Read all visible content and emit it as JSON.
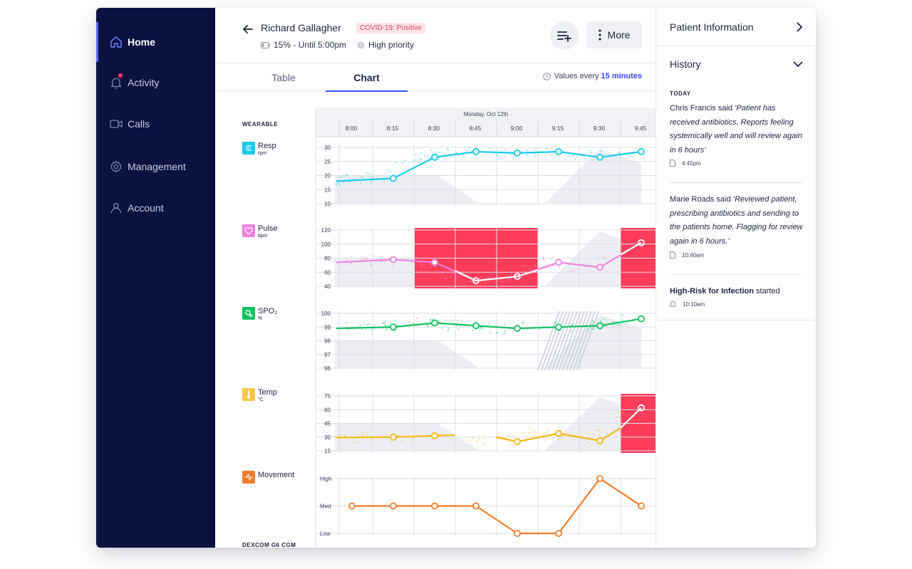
{
  "sidebar": {
    "items": [
      {
        "label": "Home",
        "icon": "home-icon",
        "active": true
      },
      {
        "label": "Activity",
        "icon": "bell-icon",
        "active": false
      },
      {
        "label": "Calls",
        "icon": "video-icon",
        "active": false
      },
      {
        "label": "Management",
        "icon": "gear-icon",
        "active": false
      },
      {
        "label": "Account",
        "icon": "user-icon",
        "active": false
      }
    ]
  },
  "header": {
    "patient_name": "Richard Gallagher",
    "covid_badge": "COVID-19: Positive",
    "battery": "15% - Until 5:00pm",
    "priority": "High priority",
    "more_label": "More"
  },
  "tabs": {
    "items": [
      "Table",
      "Chart"
    ],
    "active": "Chart",
    "interval_label": "Values every",
    "interval_value": "15 minutes"
  },
  "chart": {
    "date": "Monday, Oct 12th",
    "times": [
      "8:00",
      "8:15",
      "8:30",
      "8:45",
      "9:00",
      "9:15",
      "9:30",
      "9:45"
    ],
    "group_wearable": "WEARABLE",
    "group_dexcom": "DEXCOM G6 CGM"
  },
  "chart_data": [
    {
      "type": "line",
      "name": "Resp",
      "unit": "rpm",
      "color": "#16cbe8",
      "x": [
        "8:00",
        "8:15",
        "8:30",
        "8:45",
        "9:00",
        "9:15",
        "9:30",
        "9:45"
      ],
      "values": [
        null,
        19,
        26.5,
        28.5,
        28,
        28.5,
        26.5,
        28.5
      ],
      "start_value": 18,
      "yticks": [
        10,
        15,
        20,
        25,
        30
      ],
      "ylim": [
        10,
        32
      ]
    },
    {
      "type": "line",
      "name": "Pulse",
      "unit": "bpm",
      "color": "#ee82e0",
      "x": [
        "8:00",
        "8:15",
        "8:30",
        "8:45",
        "9:00",
        "9:15",
        "9:30",
        "9:45"
      ],
      "values": [
        null,
        78,
        74,
        48,
        54,
        74,
        67,
        102
      ],
      "start_value": 74,
      "yticks": [
        40,
        60,
        80,
        100,
        120
      ],
      "ylim": [
        40,
        120
      ],
      "alert_windows": [
        [
          "8:30",
          "9:00"
        ],
        [
          "9:45",
          "9:45"
        ]
      ]
    },
    {
      "type": "line",
      "name": "SPO₂",
      "unit": "%",
      "color": "#12c260",
      "x": [
        "8:00",
        "8:15",
        "8:30",
        "8:45",
        "9:00",
        "9:15",
        "9:30",
        "9:45"
      ],
      "values": [
        null,
        99,
        99.3,
        99.1,
        98.9,
        99,
        99.1,
        99.6
      ],
      "start_value": 98.9,
      "yticks": [
        96,
        97,
        98,
        99,
        100
      ],
      "ylim": [
        96,
        100
      ]
    },
    {
      "type": "line",
      "name": "Temp",
      "unit": "°C",
      "color": "#f7b814",
      "x": [
        "8:00",
        "8:15",
        "8:30",
        "8:45",
        "9:00",
        "9:15",
        "9:30",
        "9:45"
      ],
      "values": [
        null,
        30,
        31.5,
        null,
        25,
        34,
        26,
        62
      ],
      "start_value": 29.5,
      "yticks": [
        15,
        30,
        45,
        60,
        75
      ],
      "ylim": [
        15,
        75
      ],
      "alert_windows": [
        [
          "9:45",
          "9:45"
        ]
      ]
    },
    {
      "type": "line",
      "name": "Movement",
      "unit": "",
      "color": "#f47b2a",
      "x": [
        "8:00",
        "8:15",
        "8:30",
        "8:45",
        "9:00",
        "9:15",
        "9:30",
        "9:45"
      ],
      "values": [
        "Med",
        "Med",
        "Med",
        "Med",
        "Low",
        "Low",
        "High",
        "Med"
      ],
      "yticks": [
        "Low",
        "Med",
        "High"
      ]
    }
  ],
  "right_panel": {
    "patient_info": "Patient Information",
    "history": "History",
    "today": "TODAY",
    "entries": [
      {
        "author": "Chris Francis said ",
        "quote": "‘Patient has received antibiotics. Reports feeling systemically well and will review again in 6 hours’",
        "time": "4:45pm",
        "icon": "document-icon"
      },
      {
        "author": "Marie Roads said ",
        "quote": "‘Reviewed patient, prescribing antibiotics and sending to the patients home. Flagging for review again in 6 hours.’",
        "time": "10:40am",
        "icon": "document-icon"
      },
      {
        "strong": "High-Risk for Infection",
        "suffix": " started",
        "time": "10:10am",
        "icon": "bell-icon"
      }
    ]
  }
}
